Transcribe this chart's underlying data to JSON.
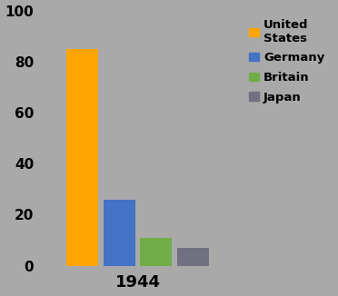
{
  "year": "1944",
  "countries": [
    "United States",
    "Germany",
    "Britain",
    "Japan"
  ],
  "values": [
    85,
    26,
    11,
    7
  ],
  "colors": [
    "#FFA500",
    "#4472C4",
    "#70AD47",
    "#707080"
  ],
  "legend_labels": [
    "United\nStates",
    "Germany",
    "Britain",
    "Japan"
  ],
  "ylim": [
    0,
    100
  ],
  "yticks": [
    0,
    20,
    40,
    60,
    80,
    100
  ],
  "background_color": "#A9A9A9",
  "bar_width": 0.12,
  "bar_positions": [
    0.1,
    0.24,
    0.38,
    0.52
  ]
}
